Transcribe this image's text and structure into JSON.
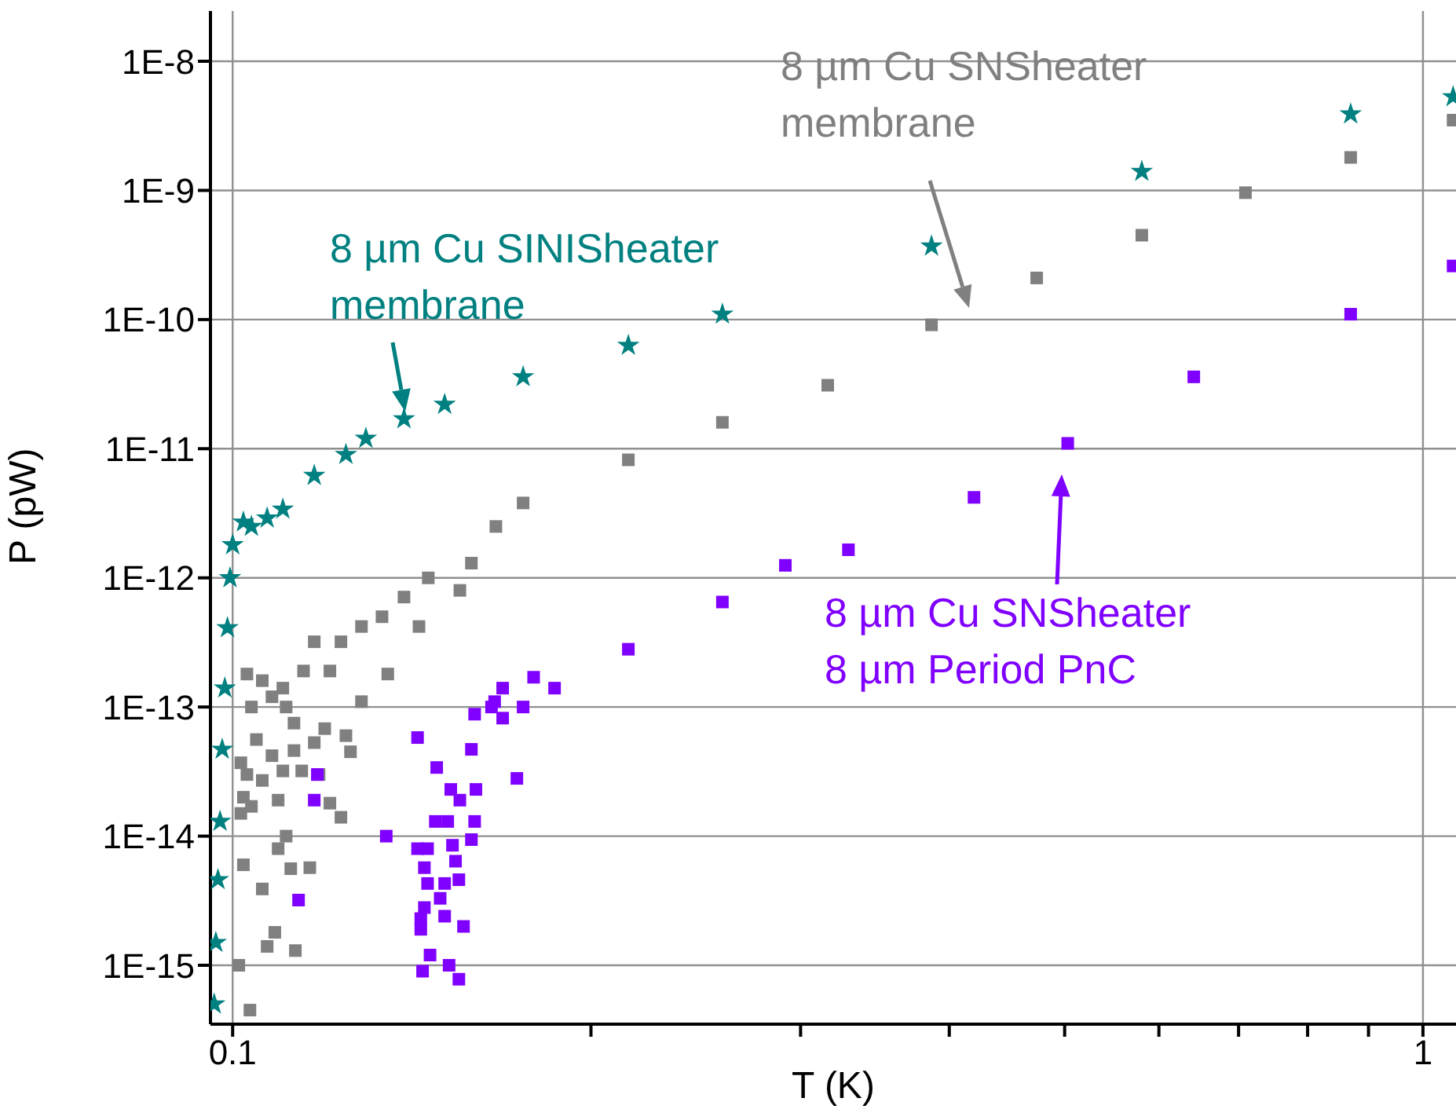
{
  "chart_data": {
    "type": "scatter",
    "xlabel": "T (K)",
    "ylabel": "P (pW)",
    "log": "xy",
    "grid": true,
    "xlim": [
      0.0958,
      1.066
    ],
    "ylim": [
      3.5e-16,
      2.45e-08
    ],
    "xticks": [
      0.1,
      {
        "value": 0.2,
        "label": null
      },
      {
        "value": 0.3,
        "label": null
      },
      {
        "value": 0.4,
        "label": null
      },
      {
        "value": 0.5,
        "label": null
      },
      {
        "value": 0.6,
        "label": null
      },
      {
        "value": 0.7,
        "label": null
      },
      {
        "value": 0.8,
        "label": null
      },
      {
        "value": 0.9,
        "label": null
      },
      1
    ],
    "yticks": [
      {
        "value": 1e-08,
        "label": "1E-8"
      },
      {
        "value": 1e-09,
        "label": "1E-9"
      },
      {
        "value": 1e-10,
        "label": "1E-10"
      },
      {
        "value": 1e-11,
        "label": "1E-11"
      },
      {
        "value": 1e-12,
        "label": "1E-12"
      },
      {
        "value": 1e-13,
        "label": "1E-13"
      },
      {
        "value": 1e-14,
        "label": "1E-14"
      },
      {
        "value": 1e-15,
        "label": "1E-15"
      }
    ],
    "series": [
      {
        "name": "8 µm Cu SINISheater\nmembrane",
        "color": "#008080",
        "marker": "star",
        "x": [
          0.0965,
          0.0968,
          0.0972,
          0.0976,
          0.098,
          0.0985,
          0.099,
          0.0995,
          0.1,
          0.1021,
          0.1037,
          0.1069,
          0.1102,
          0.1171,
          0.1245,
          0.1294,
          0.1393,
          0.1507,
          0.1754,
          0.215,
          0.2579,
          0.3865,
          0.5805,
          0.8695,
          1.06
        ],
        "values": [
          5e-16,
          1.5e-15,
          4.6e-15,
          1.3e-14,
          4.7e-14,
          1.4e-13,
          4.1e-13,
          1e-12,
          1.8e-12,
          2.7e-12,
          2.5e-12,
          2.9e-12,
          3.4e-12,
          6.2e-12,
          9e-12,
          1.2e-11,
          1.7e-11,
          2.2e-11,
          3.6e-11,
          6.3e-11,
          1.1e-10,
          3.7e-10,
          1.4e-09,
          3.9e-09,
          5.3e-09
        ]
      },
      {
        "name": "8 µm Cu SNSheater\nmembrane",
        "color": "#808080",
        "marker": "square",
        "x": [
          0.1012,
          0.1034,
          0.1021,
          0.1059,
          0.1069,
          0.1085,
          0.1129,
          0.1092,
          0.1119,
          0.1161,
          0.1109,
          0.1016,
          0.1037,
          0.1092,
          0.1021,
          0.1028,
          0.1059,
          0.1102,
          0.1143,
          0.1182,
          0.1207,
          0.1233,
          0.1016,
          0.1047,
          0.1079,
          0.1126,
          0.1171,
          0.1195,
          0.1256,
          0.1245,
          0.1037,
          0.1079,
          0.1109,
          0.1126,
          0.1028,
          0.1059,
          0.1102,
          0.1147,
          0.1207,
          0.1283,
          0.135,
          0.1171,
          0.1233,
          0.1283,
          0.1335,
          0.1393,
          0.1434,
          0.146,
          0.1552,
          0.1587,
          0.1664,
          0.1754,
          0.215,
          0.2579,
          0.3162,
          0.3865,
          0.4737,
          0.5805,
          0.7094,
          0.8695,
          1.06
        ],
        "values": [
          1e-15,
          4.5e-16,
          6e-15,
          3.9e-15,
          1.4e-15,
          1.8e-15,
          1.3e-15,
          8e-15,
          5.6e-15,
          5.7e-15,
          1e-14,
          1.5e-14,
          1.7e-14,
          1.9e-14,
          2e-14,
          3e-14,
          2.7e-14,
          3.2e-14,
          3.2e-14,
          3e-14,
          1.8e-14,
          1.4e-14,
          3.7e-14,
          5.6e-14,
          4.2e-14,
          4.6e-14,
          5.3e-14,
          6.8e-14,
          4.5e-14,
          6e-14,
          1e-13,
          1.2e-13,
          1e-13,
          7.5e-14,
          1.8e-13,
          1.6e-13,
          1.4e-13,
          1.9e-13,
          1.9e-13,
          1.1e-13,
          1.8e-13,
          3.2e-13,
          3.2e-13,
          4.2e-13,
          5e-13,
          7.1e-13,
          4.2e-13,
          1e-12,
          8e-13,
          1.3e-12,
          2.5e-12,
          3.8e-12,
          8.2e-12,
          1.6e-11,
          3.1e-11,
          9.1e-11,
          2.1e-10,
          4.5e-10,
          9.6e-10,
          1.8e-09,
          3.5e-09
        ]
      },
      {
        "name": "8 µm Cu SNSheater\n8 µm Period PnC",
        "color": "#8000ff",
        "marker": "square",
        "x": [
          0.143,
          0.1484,
          0.1525,
          0.148,
          0.1516,
          0.143,
          0.1458,
          0.1449,
          0.153,
          0.1539,
          0.1458,
          0.1507,
          0.1494,
          0.1449,
          0.1439,
          0.1439,
          0.1507,
          0.1563,
          0.1465,
          0.1444,
          0.152,
          0.1549,
          0.1549,
          0.1587,
          0.1597,
          0.1552,
          0.1601,
          0.1597,
          0.165,
          0.166,
          0.1686,
          0.1733,
          0.179,
          0.1171,
          0.1136,
          0.1178,
          0.1346,
          0.1587,
          0.1686,
          0.1754,
          0.1864,
          0.215,
          0.2579,
          0.2913,
          0.3291,
          0.4196,
          0.503,
          0.6419,
          0.8695,
          1.06
        ],
        "values": [
          5.8e-14,
          3.4e-14,
          2.3e-14,
          1.3e-14,
          1.3e-14,
          8e-15,
          8e-15,
          5.7e-15,
          8.5e-15,
          6.4e-15,
          4.3e-15,
          4.3e-15,
          3.3e-15,
          2.8e-15,
          2.3e-15,
          1.9e-15,
          2.4e-15,
          2e-15,
          1.2e-15,
          9e-16,
          1e-15,
          7.8e-16,
          4.6e-15,
          9.4e-15,
          1.3e-14,
          1.9e-14,
          2.3e-14,
          8.8e-14,
          1e-13,
          1.1e-13,
          1.4e-13,
          2.8e-14,
          1.7e-13,
          1.9e-14,
          3.2e-15,
          3e-14,
          1e-14,
          4.7e-14,
          8.2e-14,
          1e-13,
          1.4e-13,
          2.8e-13,
          6.5e-13,
          1.25e-12,
          1.65e-12,
          4.2e-12,
          1.1e-11,
          3.6e-11,
          1.1e-10,
          2.6e-10
        ]
      }
    ]
  }
}
